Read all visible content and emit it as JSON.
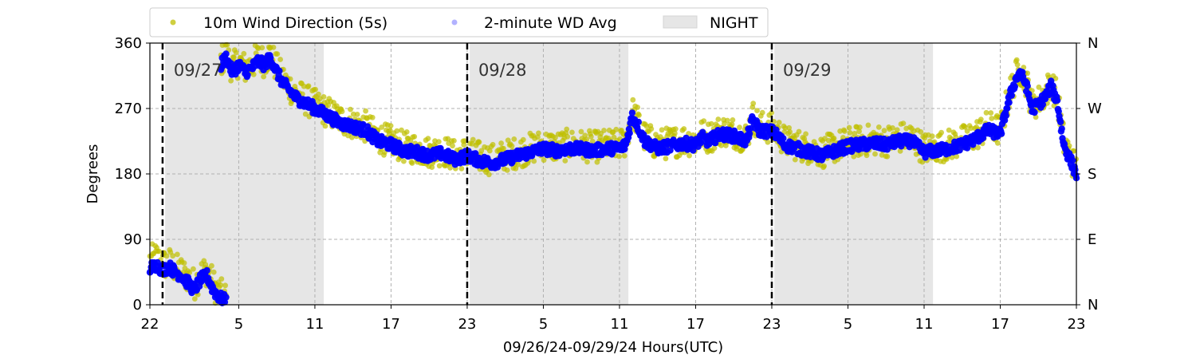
{
  "chart_data": {
    "type": "scatter",
    "xlabel": "09/26/24-09/29/24  Hours(UTC)",
    "ylabel": "Degrees",
    "x_range_hours": [
      0,
      73
    ],
    "xticks": [
      {
        "h": 0,
        "label": "22"
      },
      {
        "h": 7,
        "label": "5"
      },
      {
        "h": 13,
        "label": "11"
      },
      {
        "h": 19,
        "label": "17"
      },
      {
        "h": 25,
        "label": "23"
      },
      {
        "h": 31,
        "label": "5"
      },
      {
        "h": 37,
        "label": "11"
      },
      {
        "h": 43,
        "label": "17"
      },
      {
        "h": 49,
        "label": "23"
      },
      {
        "h": 55,
        "label": "5"
      },
      {
        "h": 61,
        "label": "11"
      },
      {
        "h": 67,
        "label": "17"
      },
      {
        "h": 73,
        "label": "23"
      }
    ],
    "ylim": [
      0,
      360
    ],
    "yticks": [
      0,
      90,
      180,
      270,
      360
    ],
    "right_ticks": [
      {
        "v": 0,
        "label": "N"
      },
      {
        "v": 90,
        "label": "E"
      },
      {
        "v": 180,
        "label": "S"
      },
      {
        "v": 270,
        "label": "W"
      },
      {
        "v": 360,
        "label": "N"
      }
    ],
    "grid": true,
    "legend_position": "top-left outside",
    "legend": [
      {
        "label": "10m Wind Direction (5s)",
        "kind": "dot",
        "color": "#bfbf00"
      },
      {
        "label": "2-minute WD Avg",
        "kind": "dot",
        "color": "#0000ff"
      },
      {
        "label": "NIGHT",
        "kind": "patch",
        "color": "#e6e6e6"
      }
    ],
    "night_bands": [
      [
        1.2,
        13.7
      ],
      [
        25.2,
        37.7
      ],
      [
        49.2,
        61.7
      ]
    ],
    "day_markers": [
      {
        "h": 1.0,
        "label": "09/27"
      },
      {
        "h": 25.0,
        "label": "09/28"
      },
      {
        "h": 49.0,
        "label": "09/29"
      }
    ],
    "series": [
      {
        "name": "2-minute WD Avg",
        "color": "#0000ff",
        "points": [
          [
            0.0,
            50
          ],
          [
            0.5,
            55
          ],
          [
            1.0,
            48
          ],
          [
            1.5,
            52
          ],
          [
            2.0,
            45
          ],
          [
            2.5,
            40
          ],
          [
            3.0,
            30
          ],
          [
            3.5,
            20
          ],
          [
            4.0,
            35
          ],
          [
            4.5,
            40
          ],
          [
            5.0,
            20
          ],
          [
            5.5,
            10
          ],
          [
            6.0,
            5
          ],
          [
            5.6,
            330
          ],
          [
            6.0,
            340
          ],
          [
            6.5,
            320
          ],
          [
            7.0,
            330
          ],
          [
            7.5,
            320
          ],
          [
            8.0,
            325
          ],
          [
            8.5,
            335
          ],
          [
            9.0,
            330
          ],
          [
            9.5,
            340
          ],
          [
            10.0,
            320
          ],
          [
            10.5,
            305
          ],
          [
            11.0,
            295
          ],
          [
            11.5,
            285
          ],
          [
            12.0,
            280
          ],
          [
            12.5,
            275
          ],
          [
            13.0,
            270
          ],
          [
            13.5,
            265
          ],
          [
            14.0,
            260
          ],
          [
            14.5,
            255
          ],
          [
            15.0,
            250
          ],
          [
            16.0,
            245
          ],
          [
            17.0,
            240
          ],
          [
            18.0,
            225
          ],
          [
            19.0,
            220
          ],
          [
            20.0,
            212
          ],
          [
            21.0,
            210
          ],
          [
            22.0,
            205
          ],
          [
            23.0,
            208
          ],
          [
            24.0,
            200
          ],
          [
            25.0,
            205
          ],
          [
            26.0,
            198
          ],
          [
            27.0,
            195
          ],
          [
            28.0,
            200
          ],
          [
            29.0,
            205
          ],
          [
            30.0,
            210
          ],
          [
            31.0,
            215
          ],
          [
            32.0,
            212
          ],
          [
            33.0,
            215
          ],
          [
            34.0,
            214
          ],
          [
            35.0,
            212
          ],
          [
            36.0,
            215
          ],
          [
            37.0,
            215
          ],
          [
            37.5,
            220
          ],
          [
            38.0,
            260
          ],
          [
            38.5,
            245
          ],
          [
            39.0,
            225
          ],
          [
            40.0,
            215
          ],
          [
            41.0,
            218
          ],
          [
            42.0,
            222
          ],
          [
            43.0,
            220
          ],
          [
            43.5,
            230
          ],
          [
            44.0,
            225
          ],
          [
            45.0,
            235
          ],
          [
            46.0,
            232
          ],
          [
            47.0,
            225
          ],
          [
            47.5,
            255
          ],
          [
            48.0,
            240
          ],
          [
            49.0,
            238
          ],
          [
            49.5,
            232
          ],
          [
            50.0,
            220
          ],
          [
            51.0,
            215
          ],
          [
            52.0,
            210
          ],
          [
            53.0,
            205
          ],
          [
            54.0,
            212
          ],
          [
            55.0,
            218
          ],
          [
            56.0,
            220
          ],
          [
            57.0,
            222
          ],
          [
            58.0,
            220
          ],
          [
            59.0,
            225
          ],
          [
            60.0,
            225
          ],
          [
            61.0,
            210
          ],
          [
            62.0,
            212
          ],
          [
            63.0,
            215
          ],
          [
            64.0,
            220
          ],
          [
            65.0,
            228
          ],
          [
            66.0,
            240
          ],
          [
            67.0,
            235
          ],
          [
            67.5,
            270
          ],
          [
            68.0,
            300
          ],
          [
            68.5,
            320
          ],
          [
            69.0,
            305
          ],
          [
            69.5,
            270
          ],
          [
            70.0,
            275
          ],
          [
            70.5,
            285
          ],
          [
            71.0,
            300
          ],
          [
            71.5,
            280
          ],
          [
            72.0,
            220
          ],
          [
            72.5,
            200
          ],
          [
            73.0,
            180
          ]
        ]
      },
      {
        "name": "10m Wind Direction (5s)",
        "color": "#bfbf00",
        "points": [
          [
            0.0,
            60
          ],
          [
            0.5,
            65
          ],
          [
            1.0,
            55
          ],
          [
            1.5,
            58
          ],
          [
            2.0,
            50
          ],
          [
            2.5,
            45
          ],
          [
            3.0,
            38
          ],
          [
            3.5,
            28
          ],
          [
            4.0,
            42
          ],
          [
            4.5,
            48
          ],
          [
            5.0,
            28
          ],
          [
            5.5,
            15
          ],
          [
            6.0,
            10
          ],
          [
            5.6,
            335
          ],
          [
            6.0,
            345
          ],
          [
            6.5,
            325
          ],
          [
            7.0,
            335
          ],
          [
            7.5,
            325
          ],
          [
            8.0,
            330
          ],
          [
            8.5,
            340
          ],
          [
            9.0,
            335
          ],
          [
            9.5,
            345
          ],
          [
            10.0,
            325
          ],
          [
            10.5,
            310
          ],
          [
            11.0,
            300
          ],
          [
            11.5,
            290
          ],
          [
            12.0,
            285
          ],
          [
            12.5,
            280
          ],
          [
            13.0,
            275
          ],
          [
            13.5,
            270
          ],
          [
            14.0,
            265
          ],
          [
            14.5,
            260
          ],
          [
            15.0,
            255
          ],
          [
            16.0,
            250
          ],
          [
            17.0,
            245
          ],
          [
            18.0,
            230
          ],
          [
            19.0,
            225
          ],
          [
            20.0,
            217
          ],
          [
            21.0,
            215
          ],
          [
            22.0,
            210
          ],
          [
            23.0,
            213
          ],
          [
            24.0,
            205
          ],
          [
            25.0,
            210
          ],
          [
            26.0,
            203
          ],
          [
            27.0,
            200
          ],
          [
            28.0,
            205
          ],
          [
            29.0,
            210
          ],
          [
            30.0,
            215
          ],
          [
            31.0,
            220
          ],
          [
            32.0,
            217
          ],
          [
            33.0,
            220
          ],
          [
            34.0,
            219
          ],
          [
            35.0,
            217
          ],
          [
            36.0,
            220
          ],
          [
            37.0,
            220
          ],
          [
            37.5,
            225
          ],
          [
            38.0,
            265
          ],
          [
            38.5,
            250
          ],
          [
            39.0,
            230
          ],
          [
            40.0,
            220
          ],
          [
            41.0,
            223
          ],
          [
            42.0,
            227
          ],
          [
            43.0,
            225
          ],
          [
            43.5,
            235
          ],
          [
            44.0,
            230
          ],
          [
            45.0,
            240
          ],
          [
            46.0,
            237
          ],
          [
            47.0,
            230
          ],
          [
            47.5,
            260
          ],
          [
            48.0,
            245
          ],
          [
            49.0,
            243
          ],
          [
            49.5,
            237
          ],
          [
            50.0,
            225
          ],
          [
            51.0,
            220
          ],
          [
            52.0,
            215
          ],
          [
            53.0,
            210
          ],
          [
            54.0,
            217
          ],
          [
            55.0,
            223
          ],
          [
            56.0,
            225
          ],
          [
            57.0,
            227
          ],
          [
            58.0,
            225
          ],
          [
            59.0,
            230
          ],
          [
            60.0,
            230
          ],
          [
            61.0,
            215
          ],
          [
            62.0,
            217
          ],
          [
            63.0,
            220
          ],
          [
            64.0,
            225
          ],
          [
            65.0,
            233
          ],
          [
            66.0,
            245
          ],
          [
            67.0,
            240
          ],
          [
            67.5,
            275
          ],
          [
            68.0,
            305
          ],
          [
            68.5,
            325
          ],
          [
            69.0,
            310
          ],
          [
            69.5,
            275
          ],
          [
            70.0,
            280
          ],
          [
            70.5,
            290
          ],
          [
            71.0,
            305
          ],
          [
            71.5,
            285
          ],
          [
            72.0,
            225
          ],
          [
            72.5,
            205
          ],
          [
            73.0,
            185
          ]
        ]
      }
    ]
  }
}
